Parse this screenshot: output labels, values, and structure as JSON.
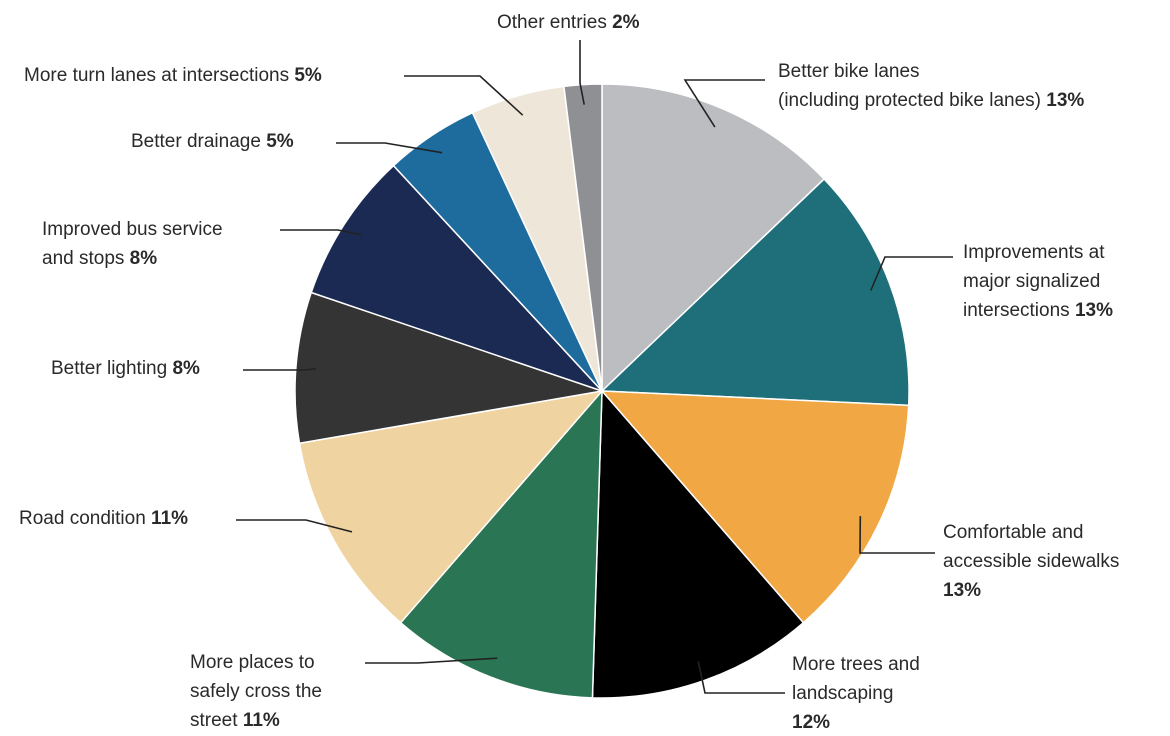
{
  "chart_data": {
    "type": "pie",
    "title": "",
    "start": "12 o'clock",
    "direction": "clockwise",
    "slices": [
      {
        "label": "Better bike lanes (including protected bike lanes)",
        "value": 13,
        "value_label": "13%",
        "color": "#bcbdc0"
      },
      {
        "label": "Improvements at major signalized intersections",
        "value": 13,
        "value_label": "13%",
        "color": "#1f6f7a"
      },
      {
        "label": "Comfortable and accessible sidewalks",
        "value": 13,
        "value_label": "13%",
        "color": "#f0a744"
      },
      {
        "label": "More trees and landscaping",
        "value": 12,
        "value_label": "12%",
        "color": "#000000"
      },
      {
        "label": "More places to safely cross the street",
        "value": 11,
        "value_label": "11%",
        "color": "#2a7654"
      },
      {
        "label": "Road condition",
        "value": 11,
        "value_label": "11%",
        "color": "#efd3a1"
      },
      {
        "label": "Better lighting",
        "value": 8,
        "value_label": "8%",
        "color": "#343434"
      },
      {
        "label": "Improved bus service and stops",
        "value": 8,
        "value_label": "8%",
        "color": "#1b2a52"
      },
      {
        "label": "Better drainage",
        "value": 5,
        "value_label": "5%",
        "color": "#1e6b9e"
      },
      {
        "label": "More turn lanes at intersections",
        "value": 5,
        "value_label": "5%",
        "color": "#eee6d9"
      },
      {
        "label": "Other entries",
        "value": 2,
        "value_label": "2%",
        "color": "#8f9094"
      }
    ]
  }
}
